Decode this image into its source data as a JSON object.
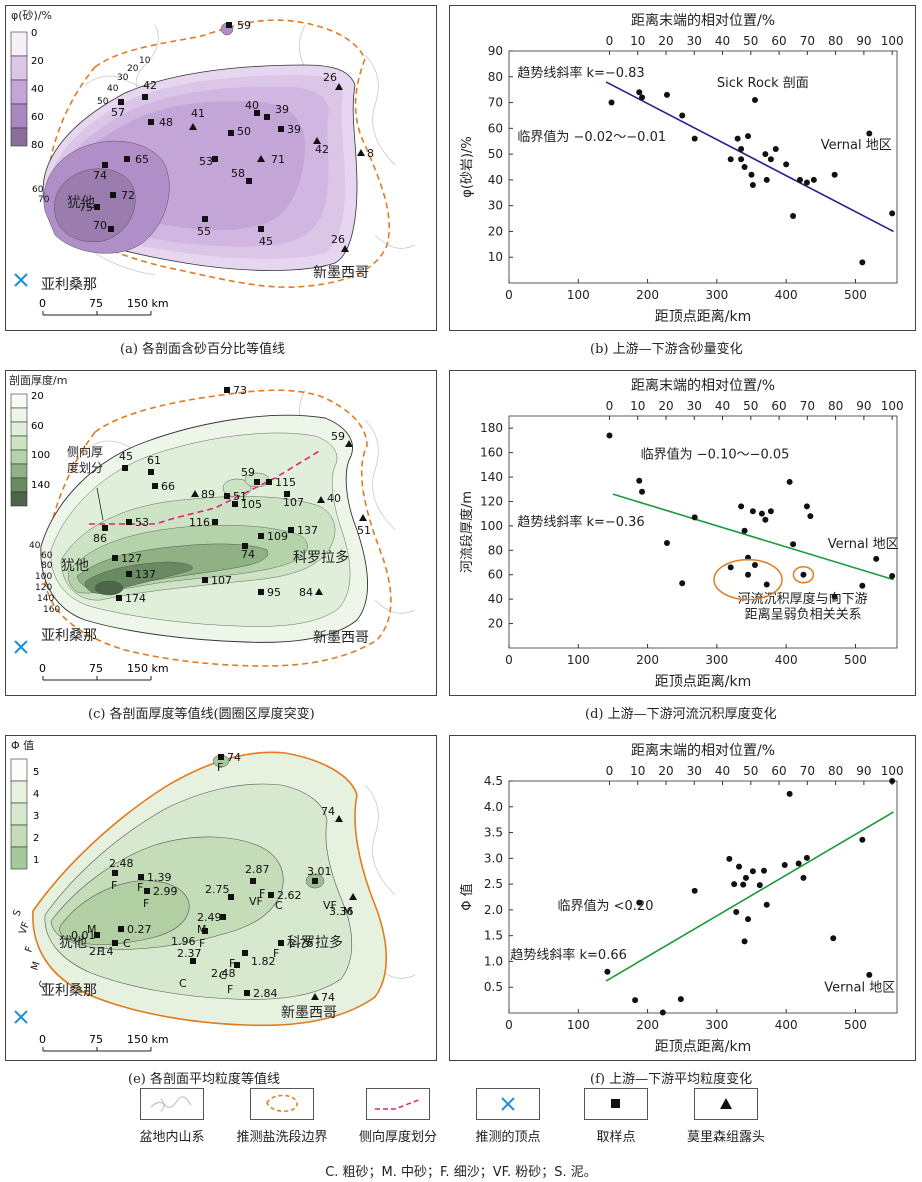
{
  "captions": {
    "a": "(a) 各剖面含砂百分比等值线",
    "b": "(b) 上游—下游含砂量变化",
    "c": "(c) 各剖面厚度等值线(圆圈区厚度突变)",
    "d": "(d) 上游—下游河流沉积厚度变化",
    "e": "(e) 各剖面平均粒度等值线",
    "f": "(f) 上游—下游平均粒度变化"
  },
  "map_common": {
    "scale_ticks": [
      "0",
      "75",
      "150 km"
    ],
    "label_arizona": "亚利桑那",
    "label_newmexico": "新墨西哥",
    "label_utah": "犹他",
    "label_colorado": "科罗拉多"
  },
  "map_a": {
    "legend_title": "φ(砂)/%",
    "legend_ticks": [
      "0",
      "20",
      "40",
      "60",
      "80"
    ],
    "contour_labels": [
      "10",
      "20",
      "30",
      "40",
      "50",
      "60",
      "70"
    ],
    "samples": [
      {
        "label": "59",
        "kind": "square"
      },
      {
        "label": "26",
        "kind": "triangle"
      },
      {
        "label": "42",
        "kind": "square"
      },
      {
        "label": "57",
        "kind": "square"
      },
      {
        "label": "48",
        "kind": "square"
      },
      {
        "label": "41",
        "kind": "triangle"
      },
      {
        "label": "50",
        "kind": "square"
      },
      {
        "label": "40",
        "kind": "square"
      },
      {
        "label": "39",
        "kind": "square"
      },
      {
        "label": "39",
        "kind": "square"
      },
      {
        "label": "42",
        "kind": "triangle"
      },
      {
        "label": "8",
        "kind": "triangle"
      },
      {
        "label": "65",
        "kind": "square"
      },
      {
        "label": "53",
        "kind": "square"
      },
      {
        "label": "71",
        "kind": "triangle"
      },
      {
        "label": "58",
        "kind": "square"
      },
      {
        "label": "74",
        "kind": "square"
      },
      {
        "label": "72",
        "kind": "square"
      },
      {
        "label": "75",
        "kind": "square"
      },
      {
        "label": "70",
        "kind": "square"
      },
      {
        "label": "55",
        "kind": "square"
      },
      {
        "label": "45",
        "kind": "square"
      },
      {
        "label": "26",
        "kind": "triangle"
      }
    ]
  },
  "map_c": {
    "legend_title": "剖面厚度/m",
    "legend_ticks": [
      "20",
      "60",
      "100",
      "140"
    ],
    "lateral_label": "侧向厚\n度划分",
    "contour_labels": [
      "40",
      "60",
      "80",
      "100",
      "120",
      "140",
      "160"
    ],
    "samples": [
      {
        "label": "73",
        "kind": "square"
      },
      {
        "label": "59",
        "kind": "triangle"
      },
      {
        "label": "61",
        "kind": "square"
      },
      {
        "label": "45",
        "kind": "square"
      },
      {
        "label": "66",
        "kind": "square"
      },
      {
        "label": "89",
        "kind": "triangle"
      },
      {
        "label": "51",
        "kind": "square"
      },
      {
        "label": "59",
        "kind": "square"
      },
      {
        "label": "115",
        "kind": "square"
      },
      {
        "label": "105",
        "kind": "square"
      },
      {
        "label": "107",
        "kind": "square"
      },
      {
        "label": "40",
        "kind": "triangle"
      },
      {
        "label": "51",
        "kind": "triangle"
      },
      {
        "label": "53",
        "kind": "square"
      },
      {
        "label": "116",
        "kind": "square"
      },
      {
        "label": "137",
        "kind": "square"
      },
      {
        "label": "86",
        "kind": "square"
      },
      {
        "label": "109",
        "kind": "square"
      },
      {
        "label": "74",
        "kind": "square"
      },
      {
        "label": "127",
        "kind": "square"
      },
      {
        "label": "137",
        "kind": "square"
      },
      {
        "label": "107",
        "kind": "square"
      },
      {
        "label": "174",
        "kind": "square"
      },
      {
        "label": "95",
        "kind": "square"
      },
      {
        "label": "84",
        "kind": "triangle"
      }
    ]
  },
  "map_e": {
    "legend_title": "Φ 值",
    "legend_ticks": [
      "5",
      "4",
      "3",
      "2",
      "1"
    ],
    "side_labels": [
      "S",
      "VF",
      "F",
      "M",
      "C"
    ],
    "samples": [
      {
        "label": "74",
        "kind": "square"
      },
      {
        "label": "74",
        "kind": "triangle"
      },
      {
        "label": "2.48",
        "kind": "square"
      },
      {
        "label": "1.39",
        "kind": "square"
      },
      {
        "label": "2.99",
        "kind": "square"
      },
      {
        "label": "2.87",
        "kind": "square"
      },
      {
        "label": "2.75",
        "kind": "square"
      },
      {
        "label": "2.62",
        "kind": "square"
      },
      {
        "label": "0.27",
        "kind": "square"
      },
      {
        "label": "0.01",
        "kind": "square"
      },
      {
        "label": "2.49",
        "kind": "square"
      },
      {
        "label": "3.01",
        "kind": "square"
      },
      {
        "label": "3.36",
        "kind": "triangle"
      },
      {
        "label": "1.96",
        "kind": "square"
      },
      {
        "label": "2.14",
        "kind": "square"
      },
      {
        "label": "1.82",
        "kind": "square"
      },
      {
        "label": "2.76",
        "kind": "square"
      },
      {
        "label": "2.48",
        "kind": "square"
      },
      {
        "label": "2.37",
        "kind": "square"
      },
      {
        "label": "2.84",
        "kind": "square"
      },
      {
        "label": "74",
        "kind": "triangle"
      }
    ],
    "grain_labels": [
      "F",
      "M",
      "F",
      "F",
      "F",
      "F",
      "VF",
      "C",
      "C",
      "M",
      "M",
      "VF",
      "M",
      "F",
      "F",
      "F",
      "F",
      "C",
      "C",
      "F",
      "F"
    ]
  },
  "legend": {
    "items": [
      "盆地内山系",
      "推测盐洗段边界",
      "侧向厚度划分",
      "推测的顶点",
      "取样点",
      "莫里森组露头"
    ]
  },
  "note": "C. 粗砂；M. 中砂；F. 细沙；VF. 粉砂；S. 泥。",
  "chart_data": [
    {
      "type": "scatter",
      "panel": "b",
      "xlabel": "距顶点距离/km",
      "x2label": "距离末端的相对位置/%",
      "ylabel": "φ(砂岩)/%",
      "xlim": [
        0,
        560
      ],
      "x_ticks": [
        0,
        100,
        200,
        300,
        400,
        500
      ],
      "x2_ticks": [
        0,
        10,
        20,
        30,
        40,
        50,
        60,
        70,
        80,
        90,
        100
      ],
      "ylim": [
        0,
        90
      ],
      "y_ticks": [
        10,
        20,
        30,
        40,
        50,
        60,
        70,
        80,
        90
      ],
      "points": [
        [
          148,
          70
        ],
        [
          188,
          74
        ],
        [
          192,
          72
        ],
        [
          228,
          73
        ],
        [
          250,
          65
        ],
        [
          268,
          56
        ],
        [
          320,
          48
        ],
        [
          330,
          56
        ],
        [
          335,
          52
        ],
        [
          340,
          45
        ],
        [
          345,
          57
        ],
        [
          350,
          42
        ],
        [
          352,
          38
        ],
        [
          355,
          71
        ],
        [
          335,
          48
        ],
        [
          370,
          50
        ],
        [
          372,
          40
        ],
        [
          378,
          48
        ],
        [
          385,
          52
        ],
        [
          400,
          46
        ],
        [
          410,
          26
        ],
        [
          420,
          40
        ],
        [
          430,
          39
        ],
        [
          440,
          40
        ],
        [
          470,
          42
        ],
        [
          510,
          8
        ],
        [
          520,
          58
        ],
        [
          553,
          27
        ]
      ],
      "trend": {
        "x": [
          140,
          555
        ],
        "y": [
          78,
          20
        ],
        "color": "#2a1f8f"
      },
      "annotations": [
        {
          "text": "趋势线斜率 k=−0.83",
          "x": 12,
          "y": 80
        },
        {
          "text": "临界值为 −0.02～−0.01",
          "x": 12,
          "y": 55
        },
        {
          "text": "Sick Rock 剖面",
          "x": 300,
          "y": 76
        },
        {
          "text": "Vernal 地区",
          "x": 450,
          "y": 52
        }
      ]
    },
    {
      "type": "scatter",
      "panel": "d",
      "xlabel": "距顶点距离/km",
      "x2label": "距离末端的相对位置/%",
      "ylabel": "河流段厚度/m",
      "xlim": [
        0,
        560
      ],
      "x_ticks": [
        0,
        100,
        200,
        300,
        400,
        500
      ],
      "x2_ticks": [
        0,
        10,
        20,
        30,
        40,
        50,
        60,
        70,
        80,
        90,
        100
      ],
      "ylim": [
        0,
        190
      ],
      "y_ticks": [
        20,
        40,
        60,
        80,
        100,
        120,
        140,
        160,
        180
      ],
      "points": [
        [
          145,
          174
        ],
        [
          188,
          137
        ],
        [
          192,
          128
        ],
        [
          228,
          86
        ],
        [
          250,
          53
        ],
        [
          268,
          107
        ],
        [
          320,
          66
        ],
        [
          335,
          116
        ],
        [
          340,
          96
        ],
        [
          345,
          60
        ],
        [
          345,
          74
        ],
        [
          352,
          112
        ],
        [
          355,
          68
        ],
        [
          365,
          110
        ],
        [
          370,
          105
        ],
        [
          378,
          112
        ],
        [
          372,
          52
        ],
        [
          405,
          136
        ],
        [
          410,
          85
        ],
        [
          425,
          60
        ],
        [
          430,
          116
        ],
        [
          435,
          108
        ],
        [
          470,
          42
        ],
        [
          510,
          51
        ],
        [
          530,
          73
        ],
        [
          553,
          59
        ]
      ],
      "trend": {
        "x": [
          150,
          555
        ],
        "y": [
          126,
          56
        ],
        "color": "#1a9a3a"
      },
      "annotations": [
        {
          "text": "临界值为 −0.10～−0.05",
          "x": 190,
          "y": 155
        },
        {
          "text": "趋势线斜率 k=−0.36",
          "x": 12,
          "y": 100
        },
        {
          "text": "Vernal 地区",
          "x": 460,
          "y": 82
        },
        {
          "text": "河流沉积厚度与向下游",
          "x": 330,
          "y": 37
        },
        {
          "text": "距离呈弱负相关关系",
          "x": 340,
          "y": 24
        }
      ]
    },
    {
      "type": "scatter",
      "panel": "f",
      "xlabel": "距顶点距离/km",
      "x2label": "距离末端的相对位置/%",
      "ylabel": "Φ 值",
      "xlim": [
        0,
        560
      ],
      "x_ticks": [
        0,
        100,
        200,
        300,
        400,
        500
      ],
      "x2_ticks": [
        0,
        10,
        20,
        30,
        40,
        50,
        60,
        70,
        80,
        90,
        100
      ],
      "ylim": [
        0,
        4.5
      ],
      "y_ticks": [
        0.5,
        1.0,
        1.5,
        2.0,
        2.5,
        3.0,
        3.5,
        4.0,
        4.5
      ],
      "points": [
        [
          142,
          0.8
        ],
        [
          182,
          0.25
        ],
        [
          188,
          2.14
        ],
        [
          222,
          0.01
        ],
        [
          248,
          0.27
        ],
        [
          268,
          2.37
        ],
        [
          318,
          2.99
        ],
        [
          325,
          2.5
        ],
        [
          328,
          1.96
        ],
        [
          332,
          2.84
        ],
        [
          338,
          2.49
        ],
        [
          340,
          1.39
        ],
        [
          342,
          2.62
        ],
        [
          345,
          1.82
        ],
        [
          352,
          2.75
        ],
        [
          362,
          2.48
        ],
        [
          368,
          2.76
        ],
        [
          372,
          2.1
        ],
        [
          398,
          2.87
        ],
        [
          405,
          4.25
        ],
        [
          418,
          2.9
        ],
        [
          425,
          2.62
        ],
        [
          430,
          3.01
        ],
        [
          468,
          1.45
        ],
        [
          510,
          3.36
        ],
        [
          520,
          0.74
        ],
        [
          553,
          4.5
        ]
      ],
      "trend": {
        "x": [
          140,
          555
        ],
        "y": [
          0.62,
          3.9
        ],
        "color": "#1a9a3a"
      },
      "annotations": [
        {
          "text": "临界值为 <0.20",
          "x": 70,
          "y": 2.0
        },
        {
          "text": "趋势线斜率 k=0.66",
          "x": 2,
          "y": 1.05
        },
        {
          "text": "Vernal 地区",
          "x": 455,
          "y": 0.42
        }
      ]
    }
  ]
}
